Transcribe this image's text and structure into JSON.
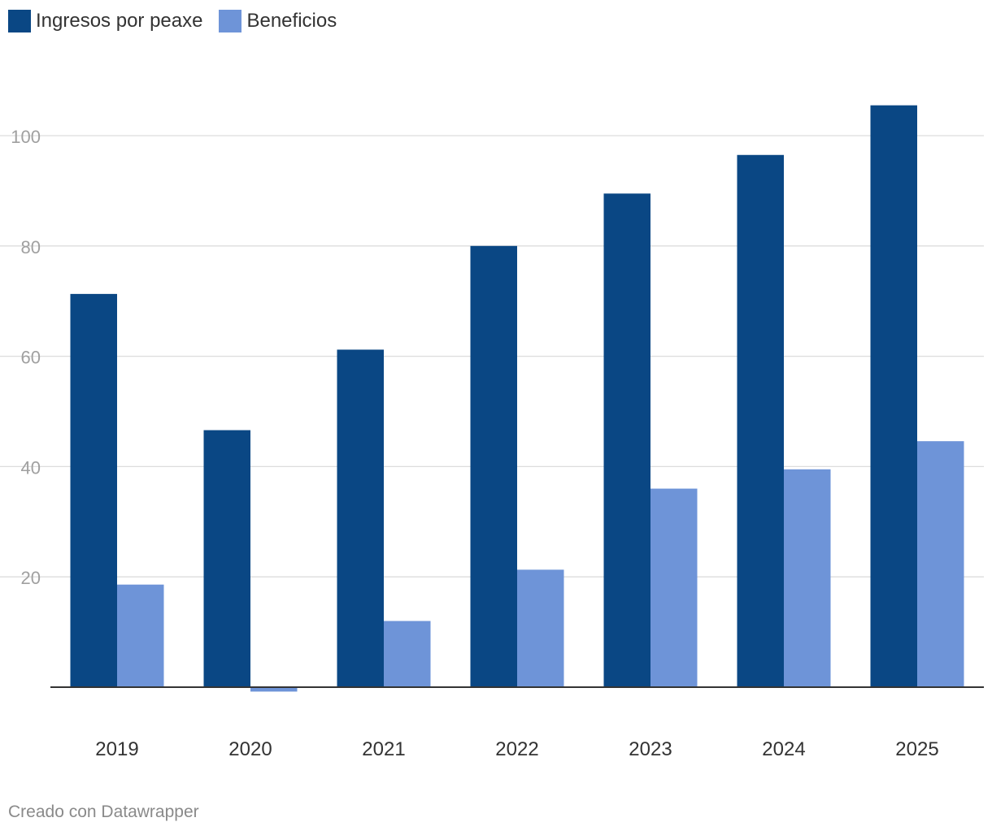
{
  "chart_data": {
    "type": "bar",
    "categories": [
      "2019",
      "2020",
      "2021",
      "2022",
      "2023",
      "2024",
      "2025"
    ],
    "series": [
      {
        "name": "Ingresos por peaxe",
        "color": "#0a4784",
        "values": [
          71.3,
          46.6,
          61.2,
          80.0,
          89.5,
          96.5,
          105.5
        ]
      },
      {
        "name": "Beneficios",
        "color": "#6e94d8",
        "values": [
          18.6,
          -0.8,
          12.0,
          21.3,
          36.0,
          39.5,
          44.6
        ]
      }
    ],
    "ylim": [
      -2,
      115
    ],
    "yticks": [
      20,
      40,
      60,
      80,
      100
    ],
    "grid": true,
    "legend_position": "top-left",
    "title": "",
    "xlabel": "",
    "ylabel": ""
  },
  "footer": {
    "credit": "Creado con Datawrapper"
  }
}
